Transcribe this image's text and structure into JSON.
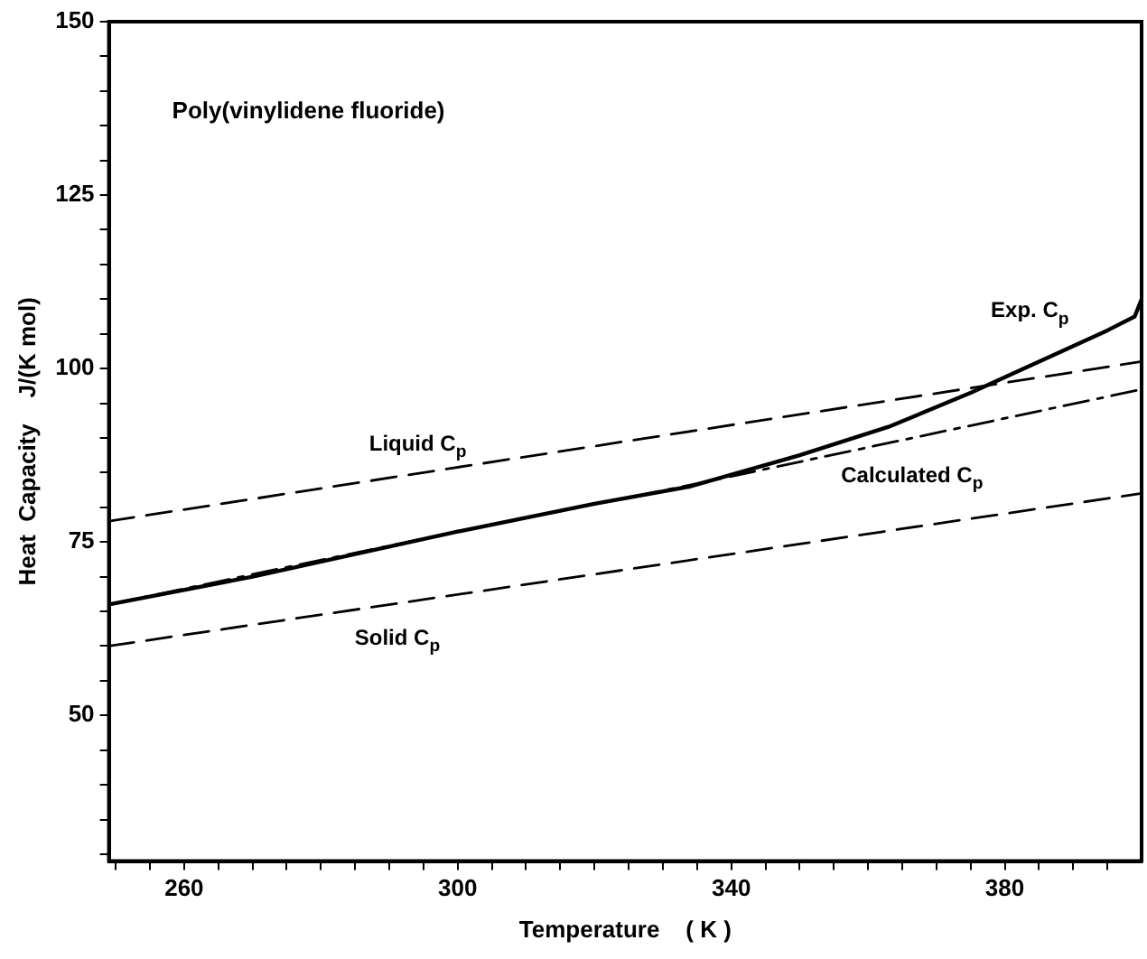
{
  "chart_data": {
    "type": "line",
    "xlabel": "Temperature    ( K )",
    "ylabel": "Heat  Capacity    J/(K mol)",
    "xlim": [
      249,
      400
    ],
    "ylim": [
      29,
      150
    ],
    "xticks": [
      {
        "value": 250,
        "label": null
      },
      {
        "value": 255,
        "label": null
      },
      260,
      {
        "value": 265,
        "label": null
      },
      {
        "value": 270,
        "label": null
      },
      {
        "value": 275,
        "label": null
      },
      {
        "value": 280,
        "label": null
      },
      {
        "value": 285,
        "label": null
      },
      {
        "value": 290,
        "label": null
      },
      {
        "value": 295,
        "label": null
      },
      300,
      {
        "value": 305,
        "label": null
      },
      {
        "value": 310,
        "label": null
      },
      {
        "value": 315,
        "label": null
      },
      {
        "value": 320,
        "label": null
      },
      {
        "value": 325,
        "label": null
      },
      {
        "value": 330,
        "label": null
      },
      {
        "value": 335,
        "label": null
      },
      340,
      {
        "value": 345,
        "label": null
      },
      {
        "value": 350,
        "label": null
      },
      {
        "value": 355,
        "label": null
      },
      {
        "value": 360,
        "label": null
      },
      {
        "value": 365,
        "label": null
      },
      {
        "value": 370,
        "label": null
      },
      {
        "value": 375,
        "label": null
      },
      380,
      {
        "value": 385,
        "label": null
      },
      {
        "value": 390,
        "label": null
      },
      {
        "value": 395,
        "label": null
      }
    ],
    "yticks": [
      {
        "value": 30,
        "label": null
      },
      {
        "value": 35,
        "label": null
      },
      {
        "value": 40,
        "label": null
      },
      {
        "value": 45,
        "label": null
      },
      50,
      {
        "value": 55,
        "label": null
      },
      {
        "value": 60,
        "label": null
      },
      {
        "value": 65,
        "label": null
      },
      {
        "value": 70,
        "label": null
      },
      75,
      {
        "value": 80,
        "label": null
      },
      {
        "value": 85,
        "label": null
      },
      {
        "value": 90,
        "label": null
      },
      {
        "value": 95,
        "label": null
      },
      100,
      {
        "value": 105,
        "label": null
      },
      {
        "value": 110,
        "label": null
      },
      {
        "value": 115,
        "label": null
      },
      {
        "value": 120,
        "label": null
      },
      125,
      {
        "value": 130,
        "label": null
      },
      {
        "value": 135,
        "label": null
      },
      {
        "value": 140,
        "label": null
      },
      {
        "value": 145,
        "label": null
      },
      150
    ],
    "grid": false,
    "legend": false,
    "marker": "none",
    "series": [
      {
        "name": "Exp. C$_{p}$",
        "color": "#000000",
        "line_style": "solid",
        "x": [
          249,
          270,
          300,
          320,
          334,
          350,
          363,
          375,
          385,
          395,
          399,
          400
        ],
        "values": [
          66,
          70,
          76.5,
          80.5,
          83,
          87.5,
          91.6,
          96.5,
          101,
          105.5,
          107.5,
          110
        ]
      },
      {
        "name": "Liquid C$_{p}$",
        "color": "#000000",
        "line_style": "dashed",
        "x": [
          249,
          400
        ],
        "values": [
          78,
          101
        ]
      },
      {
        "name": "Calculated C$_{p}$",
        "color": "#000000",
        "line_style": "dashdot",
        "x": [
          249,
          300,
          333,
          400
        ],
        "values": [
          66,
          76.5,
          83,
          97
        ]
      },
      {
        "name": "Solid C$_{p}$",
        "color": "#000000",
        "line_style": "dashed",
        "x": [
          249,
          400
        ],
        "values": [
          60,
          82
        ]
      }
    ],
    "annotations": [
      "Poly(vinylidene fluoride)"
    ]
  }
}
